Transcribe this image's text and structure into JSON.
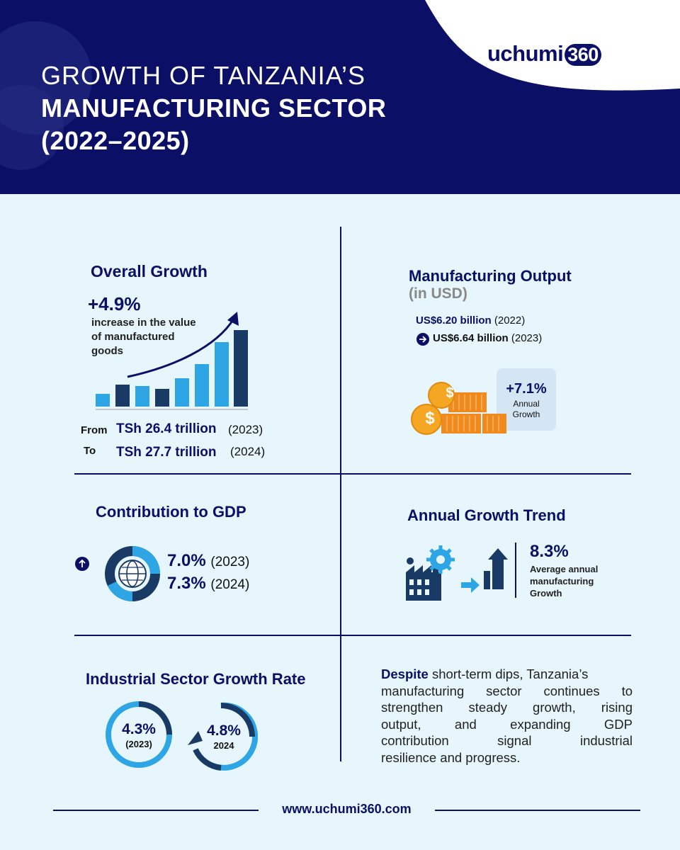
{
  "header": {
    "title_line1": "GROWTH OF TANZANIA’S",
    "title_line2": "MANUFACTURING SECTOR",
    "title_line3": "(2022–2025)",
    "logo_text": "uchumi",
    "logo_number": "360"
  },
  "overall_growth": {
    "title": "Overall Growth",
    "percent": "+4.9%",
    "desc_line1": "increase in the value",
    "desc_line2": "of manufactured",
    "desc_line3": "goods",
    "from_label": "From",
    "from_value": "TSh 26.4 trillion",
    "from_year": "(2023)",
    "to_label": "To",
    "to_value": "TSh 27.7 trillion",
    "to_year": "(2024)"
  },
  "manufacturing_output": {
    "title": "Manufacturing Output",
    "subtitle": "(in USD)",
    "v2022": "US$6.20 billion",
    "y2022": "(2022)",
    "v2023": "US$6.64 billion",
    "y2023": "(2023)",
    "growth": "+7.1%",
    "growth_label1": "Annual",
    "growth_label2": "Growth",
    "coin_symbol": "$"
  },
  "gdp": {
    "title": "Contribution to GDP",
    "v2023": "7.0%",
    "y2023": "(2023)",
    "v2024": "7.3%",
    "y2024": "(2024)"
  },
  "trend": {
    "title": "Annual Growth Trend",
    "value": "8.3%",
    "label1": "Average annual",
    "label2": "manufacturing",
    "label3": "Growth"
  },
  "industrial": {
    "title": "Industrial Sector Growth Rate",
    "r1_value": "4.3%",
    "r1_label": "(2023)",
    "r2_value": "4.8%",
    "r2_label": "2024"
  },
  "summary": {
    "lead": "Despite",
    "line1_rest": " short-term dips, Tanzania’s",
    "line2": "manufacturing sector continues to",
    "line3": "strengthen steady growth, rising",
    "line4": "output, and expanding GDP",
    "line5": "contribution signal industrial",
    "line6": "resilience and progress."
  },
  "footer": {
    "url": "www.uchumi360.com"
  },
  "colors": {
    "navy": "#0b0f66",
    "light_bg": "#e6f6fc",
    "blue": "#2ea6e6",
    "dark_blue": "#1a3a66",
    "gold": "#f5a623",
    "orange": "#f08a1c"
  }
}
